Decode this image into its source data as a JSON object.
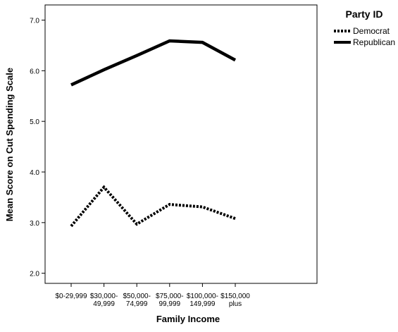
{
  "chart_data": {
    "type": "line",
    "xlabel": "Family Income",
    "ylabel": "Mean Score on Cut Spending Scale",
    "ylim": [
      1.8,
      7.3
    ],
    "yticks": [
      "2.0",
      "3.0",
      "4.0",
      "5.0",
      "6.0",
      "7.0"
    ],
    "categories": [
      [
        "$0-29,999"
      ],
      [
        "$30,000-",
        "49,999"
      ],
      [
        "$50,000-",
        "74,999"
      ],
      [
        "$75,000-",
        "99,999"
      ],
      [
        "$100,000-",
        "149,999"
      ],
      [
        "$150,000",
        "plus"
      ]
    ],
    "legend": {
      "title": "Party ID",
      "position": "top-right"
    },
    "series": [
      {
        "name": "Democrat",
        "style": "dotted",
        "color": "#000000",
        "values": [
          2.93,
          3.7,
          2.97,
          3.36,
          3.31,
          3.08
        ]
      },
      {
        "name": "Republican",
        "style": "solid",
        "color": "#000000",
        "values": [
          5.72,
          6.02,
          6.3,
          6.59,
          6.56,
          6.21
        ]
      }
    ],
    "grid": false
  }
}
